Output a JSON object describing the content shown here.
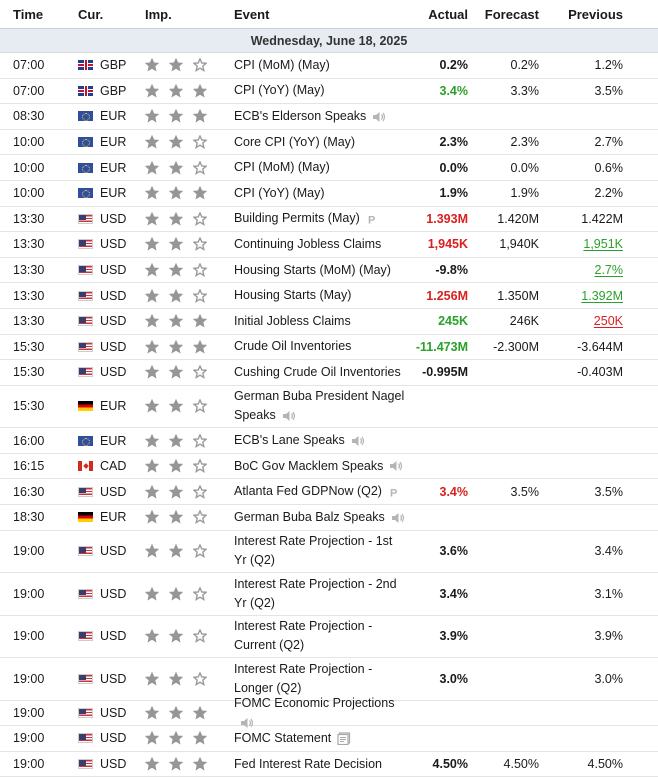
{
  "header": {
    "time": "Time",
    "cur": "Cur.",
    "imp": "Imp.",
    "event": "Event",
    "actual": "Actual",
    "forecast": "Forecast",
    "previous": "Previous"
  },
  "date_label": "Wednesday, June 18, 2025",
  "colors": {
    "positive": "#2aa12a",
    "negative": "#d92020",
    "date_band": "#e7ecf3",
    "star": "#969696"
  },
  "rows": [
    {
      "time": "07:00",
      "flag": "gb",
      "cur": "GBP",
      "imp": 2,
      "event": "CPI (MoM) (May)",
      "icon": "",
      "actual": "0.2%",
      "actual_color": "",
      "forecast": "0.2%",
      "previous": "1.2%",
      "previous_style": ""
    },
    {
      "time": "07:00",
      "flag": "gb",
      "cur": "GBP",
      "imp": 3,
      "event": "CPI (YoY) (May)",
      "icon": "",
      "actual": "3.4%",
      "actual_color": "green",
      "forecast": "3.3%",
      "previous": "3.5%",
      "previous_style": ""
    },
    {
      "time": "08:30",
      "flag": "eu",
      "cur": "EUR",
      "imp": 3,
      "event": "ECB's Elderson Speaks",
      "icon": "speaker-icon",
      "actual": "",
      "actual_color": "",
      "forecast": "",
      "previous": "",
      "previous_style": ""
    },
    {
      "time": "10:00",
      "flag": "eu",
      "cur": "EUR",
      "imp": 2,
      "event": "Core CPI (YoY) (May)",
      "icon": "",
      "actual": "2.3%",
      "actual_color": "",
      "forecast": "2.3%",
      "previous": "2.7%",
      "previous_style": ""
    },
    {
      "time": "10:00",
      "flag": "eu",
      "cur": "EUR",
      "imp": 2,
      "event": "CPI (MoM) (May)",
      "icon": "",
      "actual": "0.0%",
      "actual_color": "",
      "forecast": "0.0%",
      "previous": "0.6%",
      "previous_style": ""
    },
    {
      "time": "10:00",
      "flag": "eu",
      "cur": "EUR",
      "imp": 3,
      "event": "CPI (YoY) (May)",
      "icon": "",
      "actual": "1.9%",
      "actual_color": "",
      "forecast": "1.9%",
      "previous": "2.2%",
      "previous_style": ""
    },
    {
      "time": "13:30",
      "flag": "us",
      "cur": "USD",
      "imp": 2,
      "event": "Building Permits (May)",
      "icon": "preliminary-icon",
      "actual": "1.393M",
      "actual_color": "red",
      "forecast": "1.420M",
      "previous": "1.422M",
      "previous_style": ""
    },
    {
      "time": "13:30",
      "flag": "us",
      "cur": "USD",
      "imp": 2,
      "event": "Continuing Jobless Claims",
      "icon": "",
      "actual": "1,945K",
      "actual_color": "red",
      "forecast": "1,940K",
      "previous": "1,951K",
      "previous_style": "ul-green"
    },
    {
      "time": "13:30",
      "flag": "us",
      "cur": "USD",
      "imp": 2,
      "event": "Housing Starts (MoM) (May)",
      "icon": "",
      "actual": "-9.8%",
      "actual_color": "",
      "forecast": "",
      "previous": "2.7%",
      "previous_style": "ul-green"
    },
    {
      "time": "13:30",
      "flag": "us",
      "cur": "USD",
      "imp": 2,
      "event": "Housing Starts (May)",
      "icon": "",
      "actual": "1.256M",
      "actual_color": "red",
      "forecast": "1.350M",
      "previous": "1.392M",
      "previous_style": "ul-green"
    },
    {
      "time": "13:30",
      "flag": "us",
      "cur": "USD",
      "imp": 3,
      "event": "Initial Jobless Claims",
      "icon": "",
      "actual": "245K",
      "actual_color": "green",
      "forecast": "246K",
      "previous": "250K",
      "previous_style": "ul-red"
    },
    {
      "time": "15:30",
      "flag": "us",
      "cur": "USD",
      "imp": 3,
      "event": "Crude Oil Inventories",
      "icon": "",
      "actual": "-11.473M",
      "actual_color": "green",
      "forecast": "-2.300M",
      "previous": "-3.644M",
      "previous_style": ""
    },
    {
      "time": "15:30",
      "flag": "us",
      "cur": "USD",
      "imp": 2,
      "event": "Cushing Crude Oil Inventories",
      "icon": "",
      "actual": "-0.995M",
      "actual_color": "",
      "forecast": "",
      "previous": "-0.403M",
      "previous_style": ""
    },
    {
      "time": "15:30",
      "flag": "de",
      "cur": "EUR",
      "imp": 2,
      "event": "German Buba President Nagel Speaks",
      "icon": "speaker-icon",
      "actual": "",
      "actual_color": "",
      "forecast": "",
      "previous": "",
      "previous_style": "",
      "tall": true
    },
    {
      "time": "16:00",
      "flag": "eu",
      "cur": "EUR",
      "imp": 2,
      "event": "ECB's Lane Speaks",
      "icon": "speaker-icon",
      "actual": "",
      "actual_color": "",
      "forecast": "",
      "previous": "",
      "previous_style": ""
    },
    {
      "time": "16:15",
      "flag": "ca",
      "cur": "CAD",
      "imp": 2,
      "event": "BoC Gov Macklem Speaks",
      "icon": "speaker-icon",
      "actual": "",
      "actual_color": "",
      "forecast": "",
      "previous": "",
      "previous_style": ""
    },
    {
      "time": "16:30",
      "flag": "us",
      "cur": "USD",
      "imp": 2,
      "event": "Atlanta Fed GDPNow (Q2)",
      "icon": "preliminary-icon",
      "actual": "3.4%",
      "actual_color": "red",
      "forecast": "3.5%",
      "previous": "3.5%",
      "previous_style": ""
    },
    {
      "time": "18:30",
      "flag": "de",
      "cur": "EUR",
      "imp": 2,
      "event": "German Buba Balz Speaks",
      "icon": "speaker-icon",
      "actual": "",
      "actual_color": "",
      "forecast": "",
      "previous": "",
      "previous_style": ""
    },
    {
      "time": "19:00",
      "flag": "us",
      "cur": "USD",
      "imp": 2,
      "event": "Interest Rate Projection - 1st Yr (Q2)",
      "icon": "",
      "actual": "3.6%",
      "actual_color": "",
      "forecast": "",
      "previous": "3.4%",
      "previous_style": "",
      "tall": true
    },
    {
      "time": "19:00",
      "flag": "us",
      "cur": "USD",
      "imp": 2,
      "event": "Interest Rate Projection - 2nd Yr (Q2)",
      "icon": "",
      "actual": "3.4%",
      "actual_color": "",
      "forecast": "",
      "previous": "3.1%",
      "previous_style": "",
      "tall": true
    },
    {
      "time": "19:00",
      "flag": "us",
      "cur": "USD",
      "imp": 2,
      "event": "Interest Rate Projection - Current (Q2)",
      "icon": "",
      "actual": "3.9%",
      "actual_color": "",
      "forecast": "",
      "previous": "3.9%",
      "previous_style": "",
      "tall": true
    },
    {
      "time": "19:00",
      "flag": "us",
      "cur": "USD",
      "imp": 2,
      "event": "Interest Rate Projection - Longer (Q2)",
      "icon": "",
      "actual": "3.0%",
      "actual_color": "",
      "forecast": "",
      "previous": "3.0%",
      "previous_style": "",
      "tall": true
    },
    {
      "time": "19:00",
      "flag": "us",
      "cur": "USD",
      "imp": 3,
      "event": "FOMC Economic Projections",
      "icon": "speaker-icon",
      "actual": "",
      "actual_color": "",
      "forecast": "",
      "previous": "",
      "previous_style": ""
    },
    {
      "time": "19:00",
      "flag": "us",
      "cur": "USD",
      "imp": 3,
      "event": "FOMC Statement",
      "icon": "document-icon",
      "actual": "",
      "actual_color": "",
      "forecast": "",
      "previous": "",
      "previous_style": ""
    },
    {
      "time": "19:00",
      "flag": "us",
      "cur": "USD",
      "imp": 3,
      "event": "Fed Interest Rate Decision",
      "icon": "",
      "actual": "4.50%",
      "actual_color": "",
      "forecast": "4.50%",
      "previous": "4.50%",
      "previous_style": ""
    }
  ]
}
